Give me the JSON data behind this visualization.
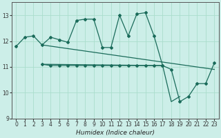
{
  "xlabel": "Humidex (Indice chaleur)",
  "bg_color": "#cceee8",
  "grid_color": "#aaddcc",
  "line_color": "#1a6b5a",
  "ylim": [
    9,
    13.5
  ],
  "xlim": [
    -0.5,
    23.5
  ],
  "yticks": [
    9,
    10,
    11,
    12,
    13
  ],
  "xticks": [
    0,
    1,
    2,
    3,
    4,
    5,
    6,
    7,
    8,
    9,
    10,
    11,
    12,
    13,
    14,
    15,
    16,
    17,
    18,
    19,
    20,
    21,
    22,
    23
  ],
  "line1_x": [
    0,
    1,
    2,
    3,
    4,
    5,
    6,
    7,
    8,
    9,
    10,
    11,
    12,
    13,
    14,
    15,
    16,
    17
  ],
  "line1_y": [
    11.8,
    12.15,
    12.2,
    11.85,
    12.15,
    12.05,
    11.95,
    12.8,
    12.85,
    12.85,
    11.75,
    11.75,
    13.0,
    12.2,
    13.05,
    13.1,
    12.2,
    11.05
  ],
  "line2_x": [
    3,
    4,
    5,
    6,
    7,
    8,
    9,
    10,
    11,
    12,
    13,
    14,
    15,
    16,
    17,
    18,
    19,
    20,
    21,
    22,
    23
  ],
  "line2_y": [
    11.1,
    11.05,
    11.05,
    11.05,
    11.05,
    11.05,
    11.05,
    11.05,
    11.05,
    11.05,
    11.05,
    11.05,
    11.05,
    11.05,
    11.05,
    10.9,
    9.65,
    9.85,
    10.35,
    10.35,
    11.15
  ],
  "line3_x": [
    3,
    23
  ],
  "line3_y": [
    11.85,
    10.9
  ],
  "line4_x": [
    3,
    17,
    18,
    19
  ],
  "line4_y": [
    11.1,
    11.05,
    9.65,
    9.85
  ]
}
